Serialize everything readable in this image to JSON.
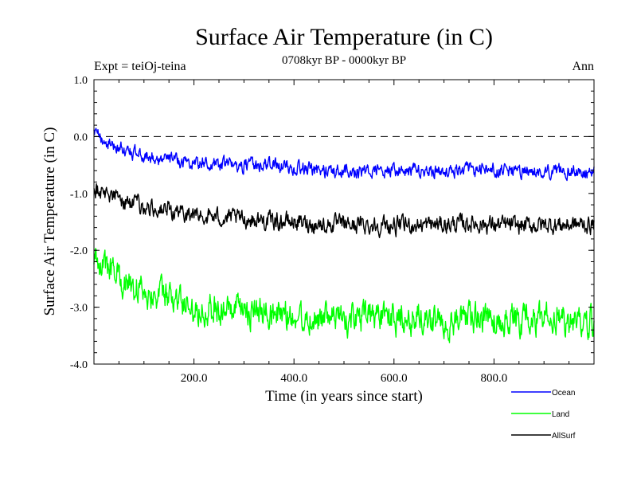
{
  "chart_data": {
    "type": "line",
    "title": "Surface Air Temperature (in C)",
    "subtitle": "0708kyr BP - 0000kyr BP",
    "left_label": "Expt = teiOj-teina",
    "right_label": "Ann",
    "xlabel": "Time (in years since start)",
    "ylabel": "Surface Air Temperature (in C)",
    "xlim": [
      0,
      1000
    ],
    "ylim": [
      -4.0,
      1.0
    ],
    "x_ticks": [
      200,
      400,
      600,
      800
    ],
    "x_tick_labels": [
      "200.0",
      "400.0",
      "600.0",
      "800.0"
    ],
    "y_ticks": [
      1.0,
      0.0,
      -1.0,
      -2.0,
      -3.0,
      -4.0
    ],
    "y_tick_labels": [
      "1.0",
      "0.0",
      "-1.0",
      "-2.0",
      "-3.0",
      "-4.0"
    ],
    "reference_line": 0.0,
    "series": [
      {
        "name": "Ocean",
        "color": "#0000ff",
        "x": [
          0,
          25,
          50,
          100,
          150,
          200,
          250,
          300,
          350,
          400,
          450,
          500,
          550,
          600,
          650,
          700,
          750,
          800,
          850,
          900,
          950,
          1000
        ],
        "values": [
          0.05,
          -0.1,
          -0.2,
          -0.35,
          -0.4,
          -0.45,
          -0.5,
          -0.5,
          -0.5,
          -0.55,
          -0.6,
          -0.6,
          -0.6,
          -0.62,
          -0.6,
          -0.6,
          -0.58,
          -0.6,
          -0.62,
          -0.6,
          -0.6,
          -0.6
        ],
        "noise": 0.13
      },
      {
        "name": "Land",
        "color": "#00ff00",
        "x": [
          0,
          25,
          50,
          100,
          150,
          200,
          250,
          300,
          350,
          400,
          450,
          500,
          550,
          600,
          650,
          700,
          750,
          800,
          850,
          900,
          950,
          1000
        ],
        "values": [
          -2.1,
          -2.3,
          -2.5,
          -2.7,
          -2.85,
          -3.0,
          -3.05,
          -3.1,
          -3.1,
          -3.15,
          -3.2,
          -3.2,
          -3.2,
          -3.2,
          -3.2,
          -3.25,
          -3.2,
          -3.2,
          -3.25,
          -3.2,
          -3.25,
          -3.25
        ],
        "noise": 0.3
      },
      {
        "name": "AllSurf",
        "color": "#000000",
        "x": [
          0,
          25,
          50,
          100,
          150,
          200,
          250,
          300,
          350,
          400,
          450,
          500,
          550,
          600,
          650,
          700,
          750,
          800,
          850,
          900,
          950,
          1000
        ],
        "values": [
          -0.9,
          -1.0,
          -1.1,
          -1.25,
          -1.3,
          -1.38,
          -1.42,
          -1.45,
          -1.48,
          -1.5,
          -1.55,
          -1.55,
          -1.55,
          -1.57,
          -1.55,
          -1.55,
          -1.52,
          -1.55,
          -1.57,
          -1.55,
          -1.55,
          -1.55
        ],
        "noise": 0.17
      }
    ],
    "legend_position": "bottom-right"
  }
}
